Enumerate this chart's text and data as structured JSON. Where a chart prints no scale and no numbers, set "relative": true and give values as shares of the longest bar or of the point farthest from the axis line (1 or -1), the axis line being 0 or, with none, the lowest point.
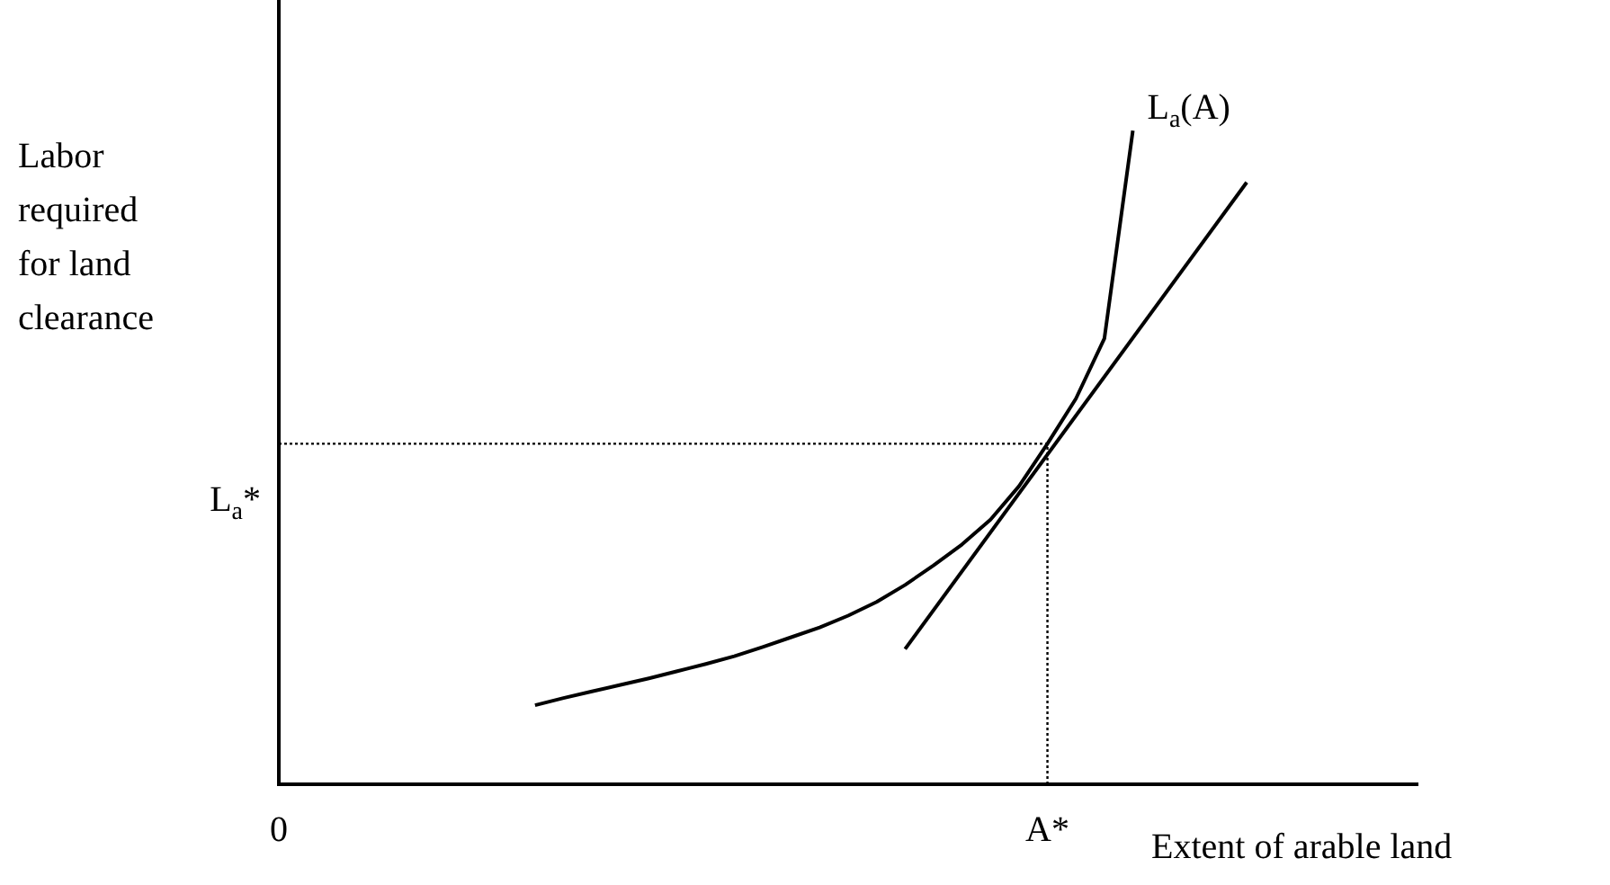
{
  "chart_data": {
    "type": "line",
    "relative": true,
    "xlabel": "Extent of arable land",
    "ylabel": "Labor required for land clearance",
    "legend": false,
    "grid": false,
    "marker": "none",
    "categories": [
      "0",
      null,
      null,
      null,
      null,
      null,
      null,
      null,
      null,
      null,
      null,
      null,
      null,
      null,
      null,
      null,
      null,
      null,
      null,
      null,
      null,
      null,
      null,
      null,
      null,
      null,
      null,
      "A*",
      null,
      null,
      null,
      null,
      null,
      null,
      null,
      null,
      null,
      null,
      null,
      null,
      null
    ],
    "series": [
      {
        "name": "L$_{a}$(A)",
        "color": "#000000",
        "values": [
          null,
          null,
          null,
          null,
          null,
          null,
          null,
          null,
          null,
          0.121,
          0.132,
          0.142,
          0.152,
          0.162,
          0.173,
          0.184,
          0.196,
          0.21,
          0.225,
          0.24,
          0.258,
          0.279,
          0.305,
          0.335,
          0.367,
          0.405,
          0.456,
          0.521,
          0.59,
          0.682,
          1,
          null,
          null,
          null,
          null,
          null,
          null,
          null,
          null,
          null,
          null
        ]
      },
      {
        "color": "#000000",
        "values": [
          null,
          null,
          null,
          null,
          null,
          null,
          null,
          null,
          null,
          null,
          null,
          null,
          null,
          null,
          null,
          null,
          null,
          null,
          null,
          null,
          null,
          null,
          0.207,
          null,
          null,
          null,
          null,
          null,
          null,
          null,
          null,
          null,
          null,
          null,
          0.921,
          null,
          null,
          null,
          null,
          null,
          null
        ]
      }
    ],
    "ref_lines": [
      {
        "axis": "y",
        "value": 0.521,
        "label": "L$_{a}$*",
        "line_style": "dotted"
      },
      {
        "axis": "x",
        "value": "A*",
        "line_style": "dotted"
      }
    ]
  }
}
